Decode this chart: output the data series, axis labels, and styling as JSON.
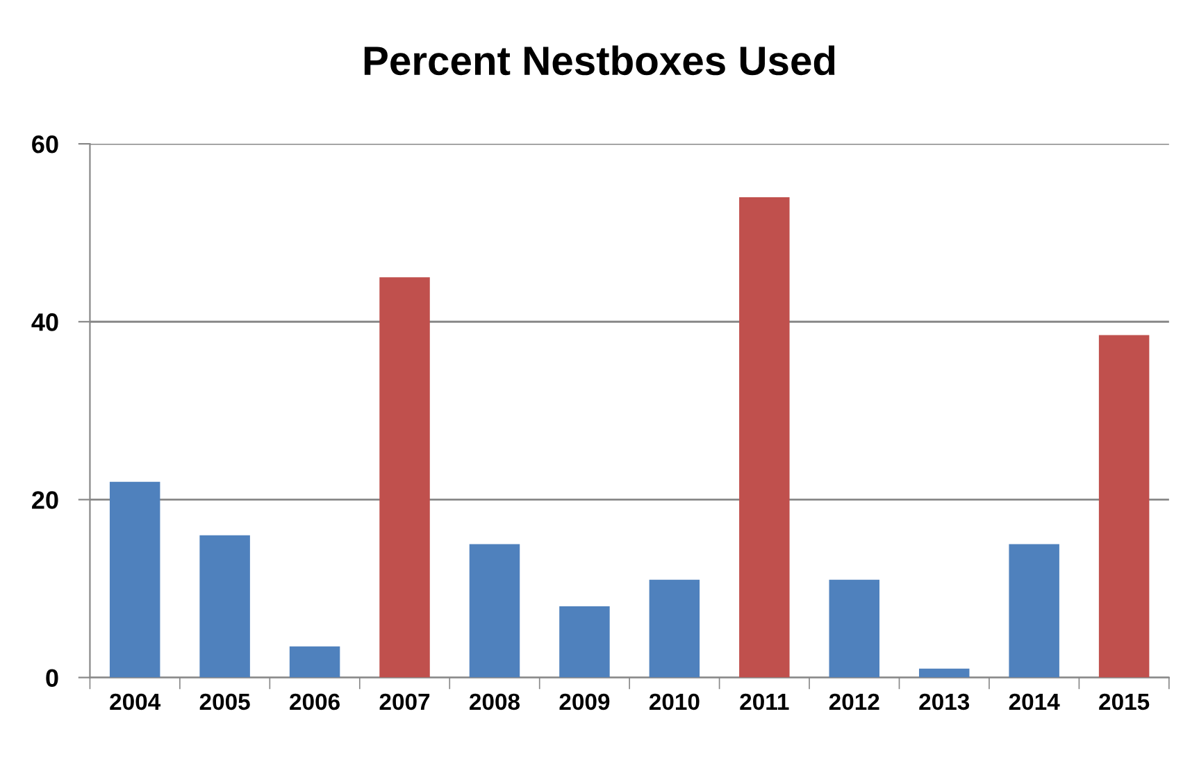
{
  "chart_data": {
    "type": "bar",
    "title": "Percent Nestboxes Used",
    "categories": [
      "2004",
      "2005",
      "2006",
      "2007",
      "2008",
      "2009",
      "2010",
      "2011",
      "2012",
      "2013",
      "2014",
      "2015"
    ],
    "values": [
      22,
      16,
      3.5,
      45,
      15,
      8,
      11,
      54,
      11,
      1,
      15,
      38.5
    ],
    "colors": [
      "#4f81bd",
      "#4f81bd",
      "#4f81bd",
      "#c0504d",
      "#4f81bd",
      "#4f81bd",
      "#4f81bd",
      "#c0504d",
      "#4f81bd",
      "#4f81bd",
      "#4f81bd",
      "#c0504d"
    ],
    "ylim": [
      0,
      60
    ],
    "yticks": [
      0,
      20,
      40,
      60
    ],
    "grid": "y"
  }
}
